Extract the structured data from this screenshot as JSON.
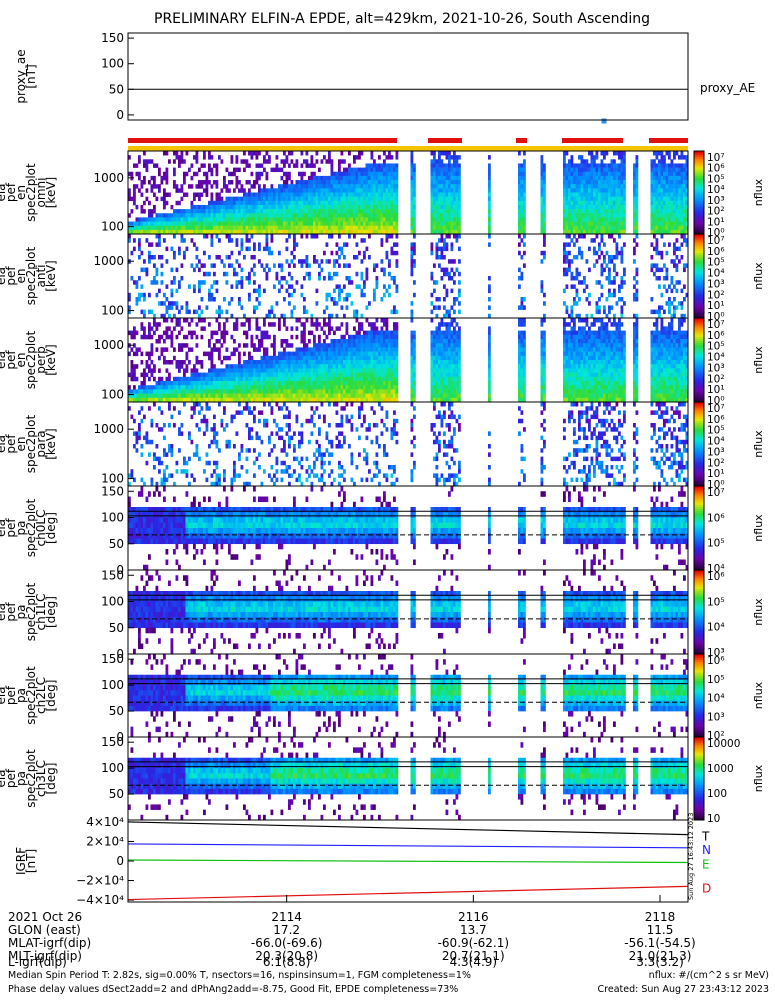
{
  "title": "PRELIMINARY ELFIN-A EPDE, alt=429km, 2021-10-26, South Ascending",
  "colors": {
    "quality_red": "#e01010",
    "quality_yellow": "#f5c400",
    "ae_point": "#3090f0",
    "trace_T": "#000000",
    "trace_N": "#2020ff",
    "trace_E": "#10c010",
    "trace_D": "#e01010"
  },
  "chart_data": [
    {
      "type": "line",
      "panel": "proxy_ae",
      "ylabel": "proxy_ae\n[nT]",
      "ylim": [
        -10,
        160
      ],
      "yticks": [
        "150",
        "100",
        "50",
        "0"
      ],
      "reference_line": 50,
      "legend": "proxy_AE",
      "points": [
        {
          "x": 2117.4,
          "y": -12
        }
      ]
    },
    {
      "type": "heatmap",
      "panel": "spec_omni",
      "ylabel": "ela\npef\nen\nspec2plot\nomni\n[keV]",
      "yscale": "log",
      "yticks": [
        "1000",
        "100"
      ],
      "colorbar": {
        "label": "nflux",
        "ticks": [
          "10^7",
          "10^6",
          "10^5",
          "10^4",
          "10^3",
          "10^2",
          "10^1",
          "10^0"
        ]
      }
    },
    {
      "type": "heatmap",
      "panel": "spec_anti",
      "ylabel": "ela\npef\nen\nspec2plot\nanti\n[keV]",
      "yscale": "log",
      "yticks": [
        "1000",
        "100"
      ],
      "colorbar": {
        "label": "nflux",
        "ticks": [
          "10^7",
          "10^6",
          "10^5",
          "10^4",
          "10^3",
          "10^2",
          "10^1",
          "10^0"
        ]
      }
    },
    {
      "type": "heatmap",
      "panel": "spec_perp",
      "ylabel": "ela\npef\nen\nspec2plot\nperp\n[keV]",
      "yscale": "log",
      "yticks": [
        "1000",
        "100"
      ],
      "colorbar": {
        "label": "nflux",
        "ticks": [
          "10^7",
          "10^6",
          "10^5",
          "10^4",
          "10^3",
          "10^2",
          "10^1",
          "10^0"
        ]
      }
    },
    {
      "type": "heatmap",
      "panel": "spec_para",
      "ylabel": "ela\npef\nen\nspec2plot\npara\n[keV]",
      "yscale": "log",
      "yticks": [
        "1000",
        "100"
      ],
      "colorbar": {
        "label": "nflux",
        "ticks": [
          "10^7",
          "10^6",
          "10^5",
          "10^4",
          "10^3",
          "10^2",
          "10^1",
          "10^0"
        ]
      }
    },
    {
      "type": "heatmap",
      "panel": "pa_ch0",
      "ylabel": "ela\npef\npa\nspec2plot\nch0LC\n[deg]",
      "ylim": [
        0,
        160
      ],
      "yticks": [
        "150",
        "100",
        "50",
        "0"
      ],
      "colorbar": {
        "label": "nflux",
        "ticks": [
          "10^7",
          "10^6",
          "10^5",
          "10^4"
        ]
      }
    },
    {
      "type": "heatmap",
      "panel": "pa_ch1",
      "ylabel": "ela\npef\npa\nspec2plot\nch1LC\n[deg]",
      "ylim": [
        0,
        160
      ],
      "yticks": [
        "150",
        "100",
        "50",
        "0"
      ],
      "colorbar": {
        "label": "nflux",
        "ticks": [
          "10^6",
          "10^5",
          "10^4",
          "10^3"
        ]
      }
    },
    {
      "type": "heatmap",
      "panel": "pa_ch2",
      "ylabel": "ela\npef\npa\nspec2plot\nch2LC\n[deg]",
      "ylim": [
        0,
        160
      ],
      "yticks": [
        "150",
        "100",
        "50",
        "0"
      ],
      "colorbar": {
        "label": "nflux",
        "ticks": [
          "10^6",
          "10^5",
          "10^4",
          "10^3",
          "10^2"
        ]
      }
    },
    {
      "type": "heatmap",
      "panel": "pa_ch3",
      "ylabel": "ela\npef\npa\nspec2plot\nch3LC\n[deg]",
      "ylim": [
        0,
        160
      ],
      "yticks": [
        "150",
        "100",
        "50"
      ],
      "colorbar": {
        "label": "nflux",
        "ticks": [
          "10000",
          "1000",
          "100",
          "10"
        ]
      }
    },
    {
      "type": "line",
      "panel": "igrf",
      "ylabel": "IGRF\n[nT]",
      "ylim": [
        -42000,
        42000
      ],
      "yticks": [
        "4×10^4",
        "2×10^4",
        "0",
        "−2×10^4",
        "−4×10^4"
      ],
      "x": [
        2112.3,
        2118.3
      ],
      "series": [
        {
          "name": "T",
          "values": [
            40000,
            27000
          ]
        },
        {
          "name": "N",
          "values": [
            17500,
            13500
          ]
        },
        {
          "name": "E",
          "values": [
            1000,
            -1500
          ]
        },
        {
          "name": "D",
          "values": [
            -39500,
            -26000
          ]
        }
      ]
    }
  ],
  "x_axis": {
    "tick_values": [
      2114,
      2116,
      2118
    ],
    "rows": [
      {
        "label": "2021 Oct 26",
        "values": [
          "2114",
          "2116",
          "2118"
        ]
      },
      {
        "label": "GLON (east)",
        "values": [
          "17.2",
          "13.7",
          "11.5"
        ]
      },
      {
        "label": "MLAT-igrf(dip)",
        "values": [
          "-66.0(-69.6)",
          "-60.9(-62.1)",
          "-56.1(-54.5)"
        ]
      },
      {
        "label": "MLT-igrf(dip)",
        "values": [
          "20.3(20.8)",
          "20.7(21.1)",
          "21.0(21.3)"
        ]
      },
      {
        "label": "L-igrf(dip)",
        "values": [
          "6.1(8.8)",
          "4.3(4.9)",
          "3.3(3.2)"
        ]
      }
    ]
  },
  "footer": {
    "line1": "Median Spin Period T: 2.82s, sig=0.00% T, nsectors=16, nspinsinsum=1, FGM completeness=1%",
    "line2": "Phase delay values dSect2add=2 and dPhAng2add=-8.75, Good Fit, EPDE completeness=73%",
    "units": "nflux: #/(cm^2 s sr MeV)",
    "created": "Created: Sun Aug 27 23:43:12 2023",
    "side_stamp": "Sun Aug 27 16:43:12 2023"
  }
}
